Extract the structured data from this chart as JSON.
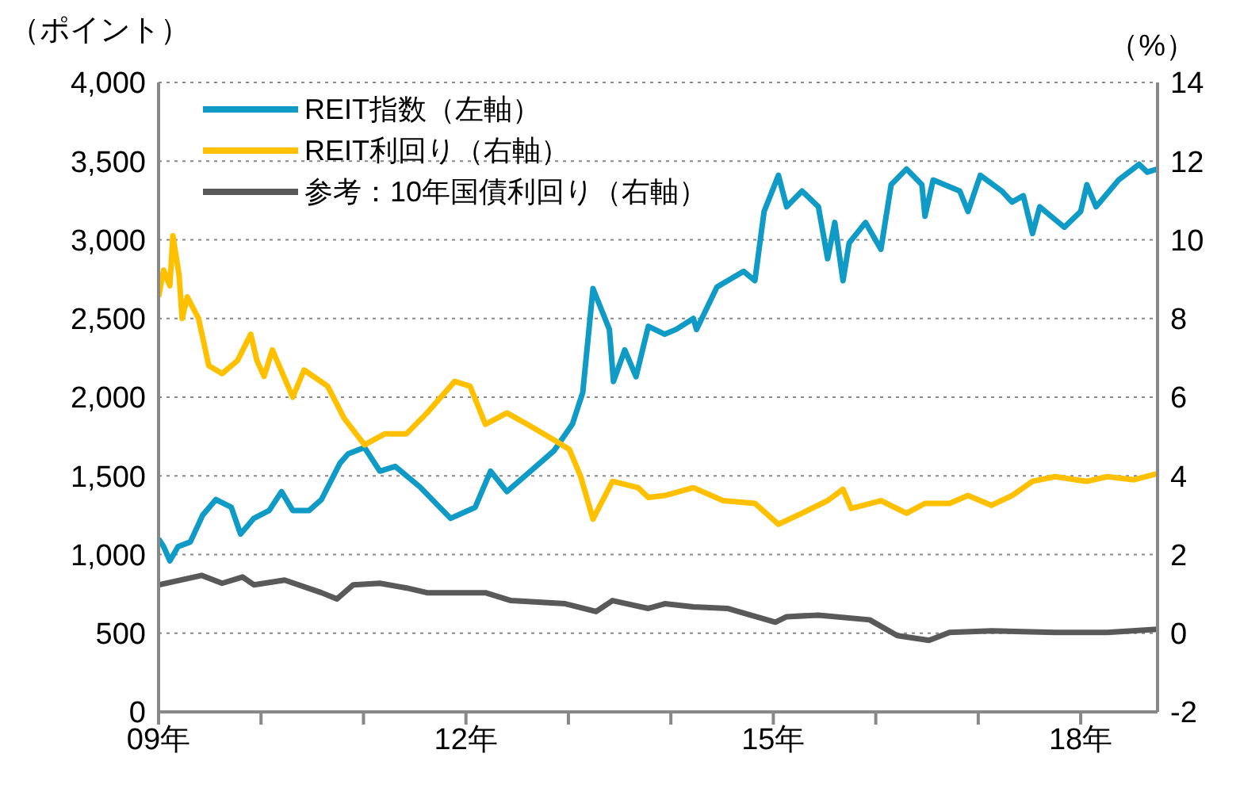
{
  "chart_data": {
    "type": "line",
    "ylabel": "（ポイント）",
    "y2label": "（%）",
    "xlim": [
      9,
      18.75
    ],
    "xticks": [
      {
        "value": 9,
        "label": "09年"
      },
      {
        "value": 10,
        "label": null
      },
      {
        "value": 11,
        "label": null
      },
      {
        "value": 12,
        "label": "12年"
      },
      {
        "value": 13,
        "label": null
      },
      {
        "value": 14,
        "label": null
      },
      {
        "value": 15,
        "label": "15年"
      },
      {
        "value": 16,
        "label": null
      },
      {
        "value": 17,
        "label": null
      },
      {
        "value": 18,
        "label": "18年"
      }
    ],
    "ylim": [
      0,
      4000
    ],
    "yticks": [
      {
        "value": 0,
        "label": "0"
      },
      {
        "value": 500,
        "label": "500"
      },
      {
        "value": 1000,
        "label": "1,000"
      },
      {
        "value": 1500,
        "label": "1,500"
      },
      {
        "value": 2000,
        "label": "2,000"
      },
      {
        "value": 2500,
        "label": "2,500"
      },
      {
        "value": 3000,
        "label": "3,000"
      },
      {
        "value": 3500,
        "label": "3,500"
      },
      {
        "value": 4000,
        "label": "4,000"
      }
    ],
    "y2lim": [
      -2,
      14
    ],
    "y2ticks": [
      -2,
      0,
      2,
      4,
      6,
      8,
      10,
      12,
      14
    ],
    "grid": "y",
    "legend": "top left",
    "marker": "none",
    "line_style": "solid",
    "series": [
      {
        "name": "REIT指数（左軸）",
        "color": "#0f9bc6",
        "x": [
          9.0,
          9.05,
          9.11,
          9.19,
          9.31,
          9.43,
          9.56,
          9.71,
          9.8,
          9.93,
          10.08,
          10.2,
          10.31,
          10.47,
          10.59,
          10.77,
          10.85,
          11.01,
          11.16,
          11.31,
          11.55,
          11.85,
          12.09,
          12.24,
          12.4,
          12.63,
          12.86,
          13.04,
          13.14,
          13.24,
          13.4,
          13.44,
          13.55,
          13.66,
          13.78,
          13.94,
          14.05,
          14.22,
          14.25,
          14.45,
          14.71,
          14.82,
          14.91,
          15.05,
          15.13,
          15.28,
          15.44,
          15.53,
          15.6,
          15.68,
          15.74,
          15.9,
          16.05,
          16.15,
          16.3,
          16.45,
          16.48,
          16.56,
          16.82,
          16.9,
          17.02,
          17.23,
          17.33,
          17.44,
          17.53,
          17.6,
          17.84,
          18.0,
          18.06,
          18.15,
          18.37,
          18.57,
          18.65,
          18.75
        ],
        "values": [
          1100,
          1050,
          960,
          1050,
          1080,
          1250,
          1350,
          1300,
          1130,
          1230,
          1280,
          1400,
          1280,
          1280,
          1350,
          1580,
          1640,
          1680,
          1530,
          1560,
          1430,
          1230,
          1300,
          1530,
          1400,
          1530,
          1660,
          1830,
          2030,
          2690,
          2430,
          2100,
          2300,
          2130,
          2450,
          2400,
          2430,
          2500,
          2430,
          2700,
          2800,
          2740,
          3180,
          3410,
          3210,
          3310,
          3210,
          2880,
          3110,
          2740,
          2980,
          3110,
          2940,
          3350,
          3450,
          3350,
          3150,
          3380,
          3310,
          3180,
          3410,
          3310,
          3240,
          3280,
          3040,
          3210,
          3080,
          3180,
          3350,
          3210,
          3380,
          3480,
          3430,
          3450
        ]
      },
      {
        "name": "REIT利回り（右軸）",
        "color": "#ffc000",
        "axis": "y2",
        "x": [
          9.0,
          9.05,
          9.11,
          9.14,
          9.2,
          9.23,
          9.28,
          9.39,
          9.49,
          9.62,
          9.77,
          9.9,
          9.96,
          10.03,
          10.11,
          10.31,
          10.42,
          10.65,
          10.81,
          11.01,
          11.21,
          11.42,
          11.62,
          11.89,
          12.04,
          12.19,
          12.4,
          12.6,
          12.86,
          13.01,
          13.12,
          13.24,
          13.43,
          13.68,
          13.78,
          13.94,
          14.22,
          14.51,
          14.82,
          15.05,
          15.28,
          15.53,
          15.68,
          15.76,
          16.05,
          16.3,
          16.48,
          16.72,
          16.9,
          17.13,
          17.33,
          17.53,
          17.75,
          18.06,
          18.26,
          18.52,
          18.75
        ],
        "values": [
          8.55,
          9.23,
          8.83,
          10.1,
          9.1,
          8.0,
          8.55,
          8.0,
          6.8,
          6.6,
          6.93,
          7.6,
          6.93,
          6.53,
          7.2,
          6.0,
          6.69,
          6.28,
          5.47,
          4.79,
          5.07,
          5.07,
          5.6,
          6.4,
          6.28,
          5.31,
          5.6,
          5.31,
          4.91,
          4.67,
          3.98,
          2.9,
          3.86,
          3.7,
          3.45,
          3.5,
          3.7,
          3.37,
          3.3,
          2.77,
          3.05,
          3.37,
          3.66,
          3.17,
          3.37,
          3.05,
          3.3,
          3.3,
          3.5,
          3.25,
          3.5,
          3.86,
          3.98,
          3.86,
          3.98,
          3.9,
          4.06
        ]
      },
      {
        "name": "参考：10年国債利回り（右軸）",
        "color": "#595959",
        "axis": "y2",
        "x": [
          9.0,
          9.42,
          9.62,
          9.82,
          9.93,
          10.23,
          10.59,
          10.74,
          10.9,
          11.16,
          11.42,
          11.62,
          12.19,
          12.44,
          12.97,
          13.27,
          13.43,
          13.78,
          13.94,
          14.22,
          14.55,
          15.02,
          15.13,
          15.44,
          15.94,
          16.21,
          16.52,
          16.72,
          17.13,
          17.75,
          18.26,
          18.75
        ],
        "values": [
          1.23,
          1.47,
          1.27,
          1.43,
          1.23,
          1.35,
          1.03,
          0.87,
          1.23,
          1.27,
          1.15,
          1.03,
          1.03,
          0.83,
          0.75,
          0.55,
          0.83,
          0.63,
          0.75,
          0.67,
          0.63,
          0.28,
          0.42,
          0.46,
          0.34,
          -0.06,
          -0.18,
          0.02,
          0.06,
          0.02,
          0.02,
          0.1
        ]
      }
    ]
  }
}
